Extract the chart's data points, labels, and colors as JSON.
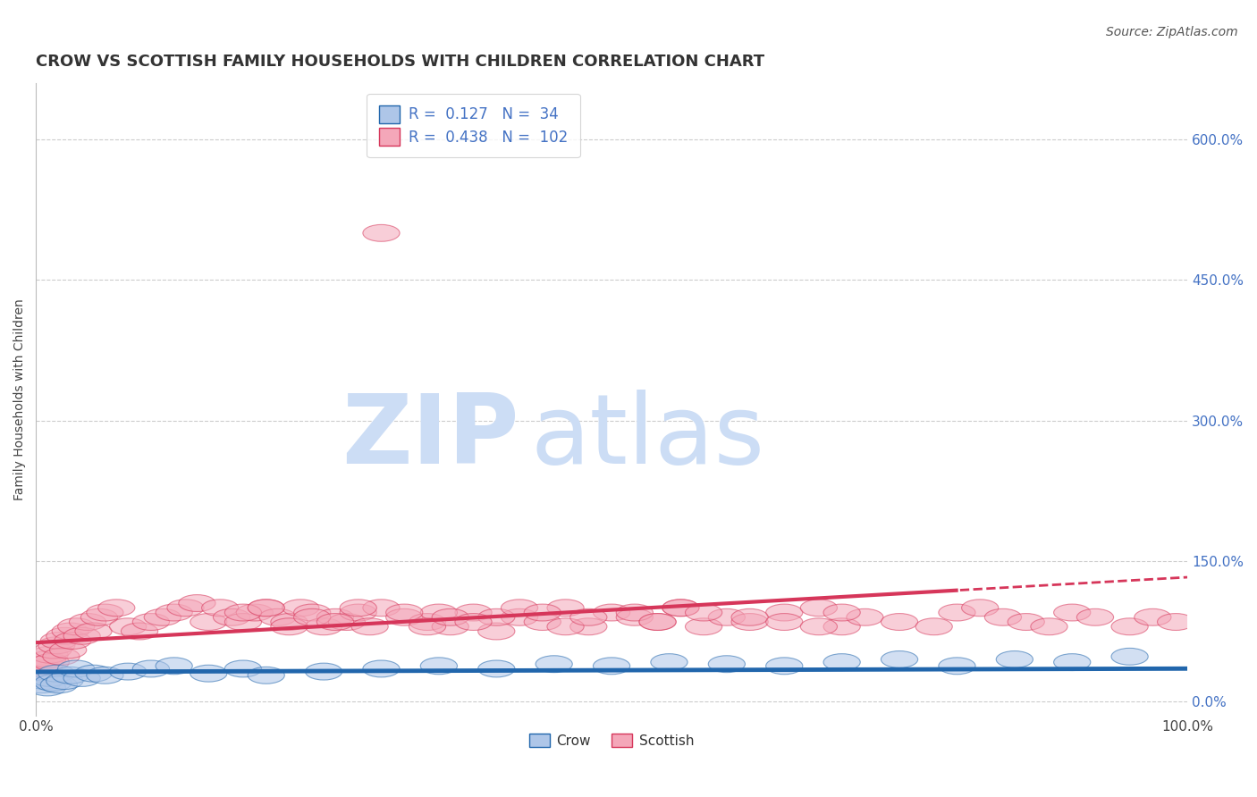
{
  "title": "CROW VS SCOTTISH FAMILY HOUSEHOLDS WITH CHILDREN CORRELATION CHART",
  "source": "Source: ZipAtlas.com",
  "ylabel": "Family Households with Children",
  "ytick_values": [
    0,
    150,
    300,
    450,
    600
  ],
  "xlim": [
    0,
    100
  ],
  "ylim": [
    -15,
    660
  ],
  "crow_R": 0.127,
  "crow_N": 34,
  "scottish_R": 0.438,
  "scottish_N": 102,
  "crow_color": "#aec6e8",
  "scottish_color": "#f4a7b9",
  "crow_line_color": "#2166ac",
  "scottish_line_color": "#d6365a",
  "background_color": "#ffffff",
  "watermark_color": "#ccddf5",
  "title_fontsize": 13,
  "crow_x_data": [
    0.5,
    0.8,
    1.0,
    1.2,
    1.5,
    1.8,
    2.0,
    2.5,
    3.0,
    3.5,
    4.0,
    5.0,
    6.0,
    8.0,
    10.0,
    12.0,
    15.0,
    18.0,
    20.0,
    25.0,
    30.0,
    35.0,
    40.0,
    45.0,
    50.0,
    55.0,
    60.0,
    65.0,
    70.0,
    75.0,
    80.0,
    85.0,
    90.0,
    95.0
  ],
  "crow_y_data": [
    18,
    22,
    15,
    25,
    20,
    30,
    18,
    22,
    28,
    35,
    25,
    30,
    28,
    32,
    35,
    38,
    30,
    35,
    28,
    32,
    35,
    38,
    35,
    40,
    38,
    42,
    40,
    38,
    42,
    45,
    38,
    45,
    42,
    48
  ],
  "scottish_x_data": [
    0.3,
    0.5,
    0.7,
    0.8,
    1.0,
    1.2,
    1.3,
    1.5,
    1.8,
    2.0,
    2.2,
    2.5,
    2.8,
    3.0,
    3.2,
    3.5,
    4.0,
    4.5,
    5.0,
    5.5,
    6.0,
    7.0,
    8.0,
    9.0,
    10.0,
    11.0,
    12.0,
    13.0,
    14.0,
    15.0,
    16.0,
    17.0,
    18.0,
    19.0,
    20.0,
    21.0,
    22.0,
    23.0,
    24.0,
    25.0,
    26.0,
    27.0,
    28.0,
    29.0,
    30.0,
    32.0,
    34.0,
    36.0,
    38.0,
    40.0,
    42.0,
    44.0,
    46.0,
    48.0,
    50.0,
    52.0,
    54.0,
    56.0,
    58.0,
    60.0,
    62.0,
    65.0,
    68.0,
    70.0,
    72.0,
    75.0,
    78.0,
    80.0,
    82.0,
    84.0,
    86.0,
    88.0,
    90.0,
    92.0,
    95.0,
    97.0,
    99.0,
    30.0,
    35.0,
    40.0,
    18.0,
    20.0,
    22.0,
    24.0,
    26.0,
    28.0,
    32.0,
    34.0,
    36.0,
    38.0,
    42.0,
    44.0,
    46.0,
    48.0,
    52.0,
    54.0,
    56.0,
    58.0,
    62.0,
    65.0,
    68.0,
    70.0
  ],
  "scottish_y_data": [
    25,
    30,
    35,
    40,
    45,
    50,
    42,
    55,
    60,
    65,
    48,
    70,
    55,
    75,
    65,
    80,
    70,
    85,
    75,
    90,
    95,
    100,
    80,
    75,
    85,
    90,
    95,
    100,
    105,
    85,
    100,
    90,
    85,
    95,
    100,
    90,
    85,
    100,
    95,
    80,
    90,
    85,
    95,
    80,
    100,
    90,
    85,
    80,
    95,
    75,
    90,
    85,
    100,
    80,
    95,
    90,
    85,
    100,
    80,
    90,
    85,
    95,
    100,
    80,
    90,
    85,
    80,
    95,
    100,
    90,
    85,
    80,
    95,
    90,
    80,
    90,
    85,
    500,
    95,
    90,
    95,
    100,
    80,
    90,
    85,
    100,
    95,
    80,
    90,
    85,
    100,
    95,
    80,
    90,
    95,
    85,
    100,
    95,
    90,
    85,
    80,
    95
  ]
}
